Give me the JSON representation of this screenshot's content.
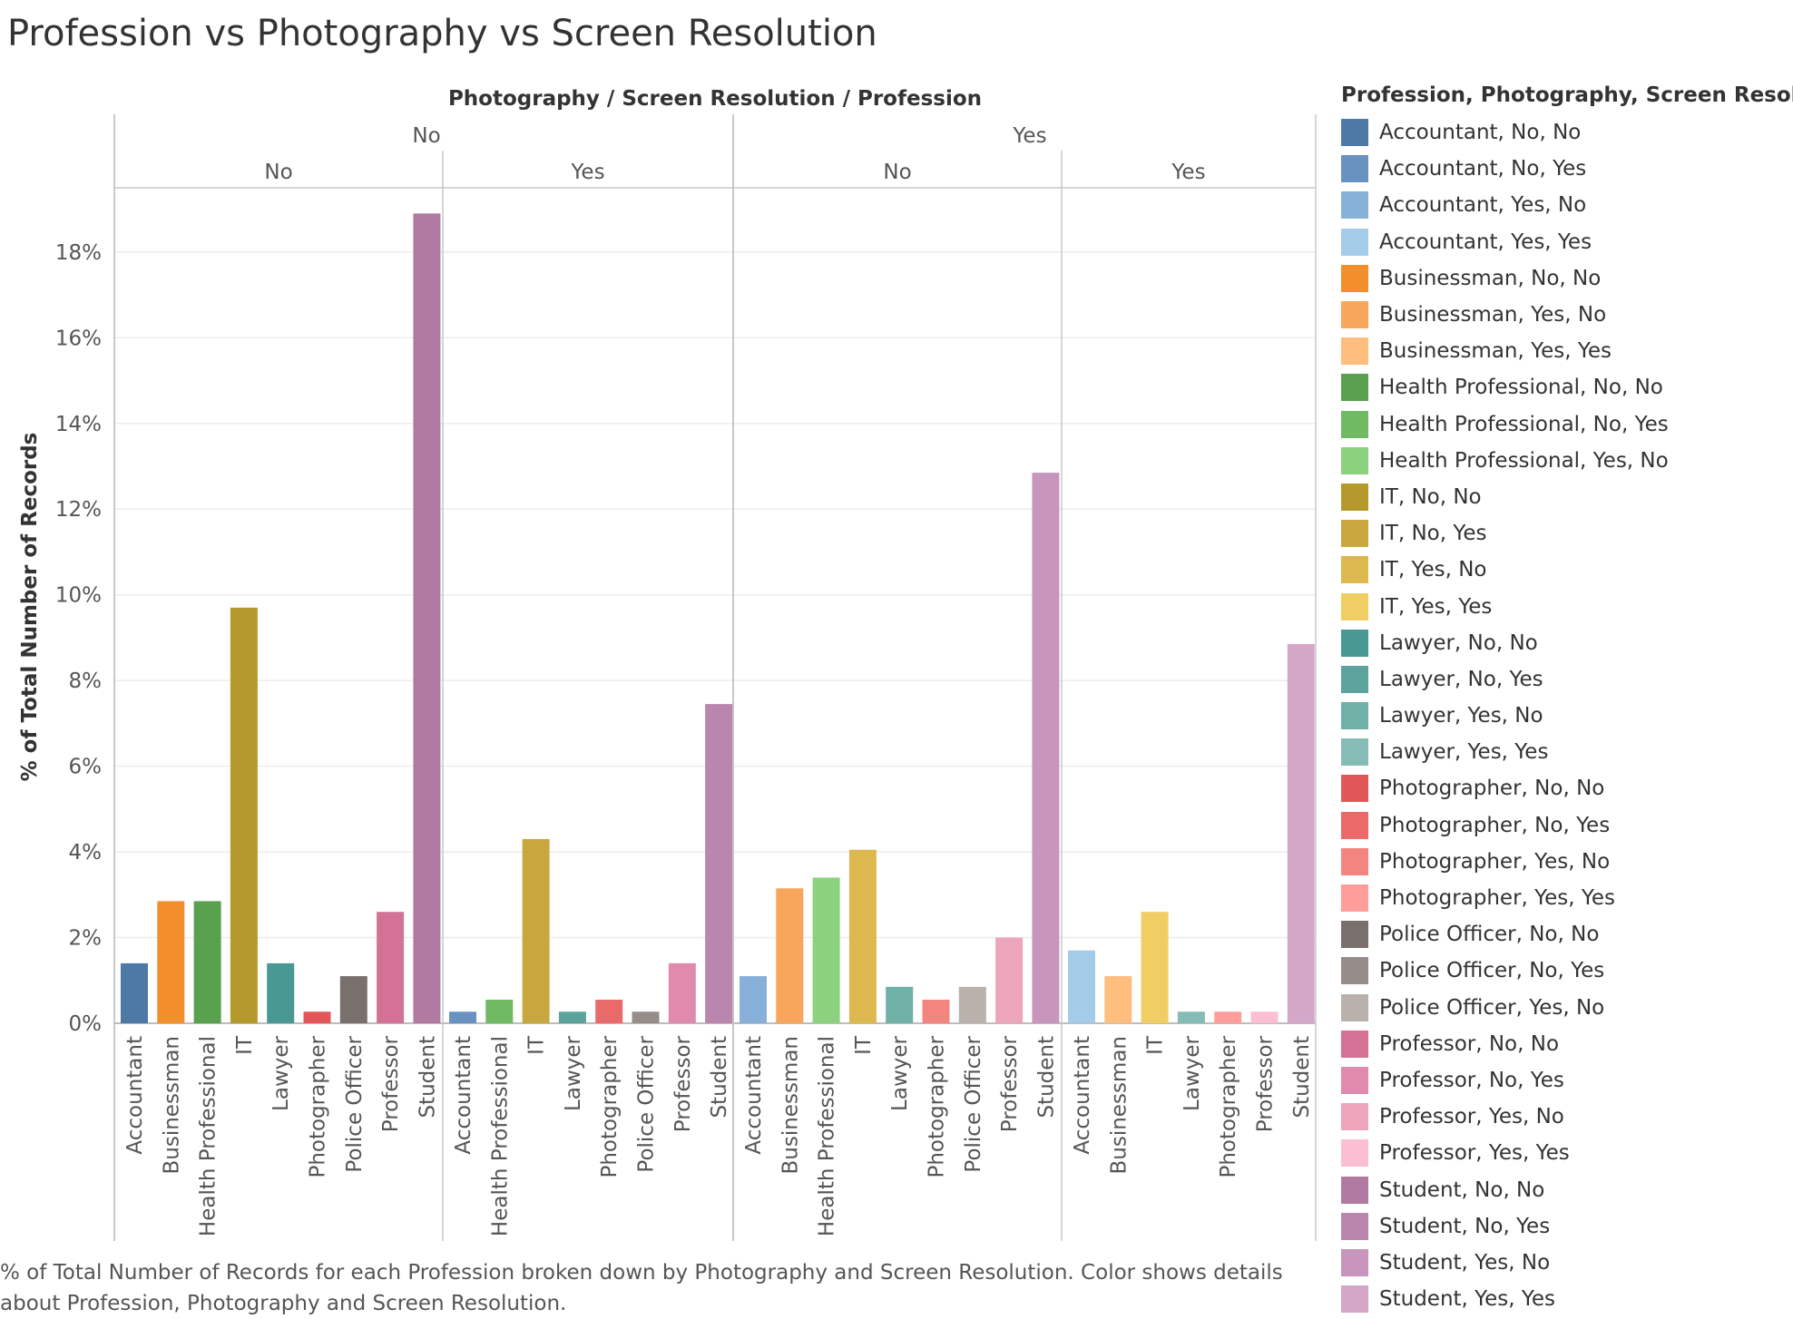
{
  "title": "Profession vs Photography vs Screen Resolution",
  "caption": "% of Total Number of Records for each Profession broken down by Photography and Screen Resolution.  Color shows details about Profession, Photography and Screen Resolution.",
  "legend_title": "Profession, Photography, Screen Resolution",
  "legend": [
    {
      "label": "Accountant, No, No",
      "color": "#4e79a7"
    },
    {
      "label": "Accountant, No, Yes",
      "color": "#6a92c1"
    },
    {
      "label": "Accountant, Yes, No",
      "color": "#86b0d8"
    },
    {
      "label": "Accountant, Yes, Yes",
      "color": "#a4cce9"
    },
    {
      "label": "Businessman, No, No",
      "color": "#f28e2b"
    },
    {
      "label": "Businessman, Yes, No",
      "color": "#f8a65c"
    },
    {
      "label": "Businessman, Yes, Yes",
      "color": "#ffbe7d"
    },
    {
      "label": "Health Professional, No, No",
      "color": "#59a14f"
    },
    {
      "label": "Health Professional, No, Yes",
      "color": "#6fba62"
    },
    {
      "label": "Health Professional, Yes, No",
      "color": "#8cd17d"
    },
    {
      "label": "IT, No, No",
      "color": "#b6992d"
    },
    {
      "label": "IT, No, Yes",
      "color": "#c8a73e"
    },
    {
      "label": "IT, Yes, No",
      "color": "#dcb84f"
    },
    {
      "label": "IT, Yes, Yes",
      "color": "#f1ce63"
    },
    {
      "label": "Lawyer, No, No",
      "color": "#499894"
    },
    {
      "label": "Lawyer, No, Yes",
      "color": "#5ba39c"
    },
    {
      "label": "Lawyer, Yes, No",
      "color": "#6fb0a7"
    },
    {
      "label": "Lawyer, Yes, Yes",
      "color": "#86bcb6"
    },
    {
      "label": "Photographer, No, No",
      "color": "#e15759"
    },
    {
      "label": "Photographer, No, Yes",
      "color": "#ea6a6a"
    },
    {
      "label": "Photographer, Yes, No",
      "color": "#f38580"
    },
    {
      "label": "Photographer, Yes, Yes",
      "color": "#ff9d9a"
    },
    {
      "label": "Police Officer, No, No",
      "color": "#79706e"
    },
    {
      "label": "Police Officer, No, Yes",
      "color": "#968c89"
    },
    {
      "label": "Police Officer, Yes, No",
      "color": "#bab0ac"
    },
    {
      "label": "Professor, No, No",
      "color": "#d37295"
    },
    {
      "label": "Professor, No, Yes",
      "color": "#e08aad"
    },
    {
      "label": "Professor, Yes, No",
      "color": "#eda5bb"
    },
    {
      "label": "Professor, Yes, Yes",
      "color": "#fabfd2"
    },
    {
      "label": "Student, No, No",
      "color": "#b07aa1"
    },
    {
      "label": "Student, No, Yes",
      "color": "#bb86ae"
    },
    {
      "label": "Student, Yes, No",
      "color": "#c895bc"
    },
    {
      "label": "Student, Yes, Yes",
      "color": "#d4a6c8"
    }
  ],
  "chart_data": {
    "type": "bar",
    "title": "Profession vs Photography vs Screen Resolution",
    "header_title": "Photography / Screen Resolution / Profession",
    "ylabel": "% of Total Number of Records",
    "ylim": [
      0,
      19.5
    ],
    "yticks": [
      0,
      2,
      4,
      6,
      8,
      10,
      12,
      14,
      16,
      18
    ],
    "ytick_labels": [
      "0%",
      "2%",
      "4%",
      "6%",
      "8%",
      "10%",
      "12%",
      "14%",
      "16%",
      "18%"
    ],
    "gridlines": true,
    "legend_position": "right",
    "groups": [
      {
        "photography": "No",
        "panels": [
          {
            "screen_resolution": "No",
            "bars": [
              {
                "profession": "Accountant",
                "value": 1.4,
                "color": "#4e79a7"
              },
              {
                "profession": "Businessman",
                "value": 2.85,
                "color": "#f28e2b"
              },
              {
                "profession": "Health Professional",
                "value": 2.85,
                "color": "#59a14f"
              },
              {
                "profession": "IT",
                "value": 9.7,
                "color": "#b6992d"
              },
              {
                "profession": "Lawyer",
                "value": 1.4,
                "color": "#499894"
              },
              {
                "profession": "Photographer",
                "value": 0.27,
                "color": "#e15759"
              },
              {
                "profession": "Police Officer",
                "value": 1.1,
                "color": "#79706e"
              },
              {
                "profession": "Professor",
                "value": 2.6,
                "color": "#d37295"
              },
              {
                "profession": "Student",
                "value": 18.9,
                "color": "#b07aa1"
              }
            ]
          },
          {
            "screen_resolution": "Yes",
            "bars": [
              {
                "profession": "Accountant",
                "value": 0.27,
                "color": "#6a92c1"
              },
              {
                "profession": "Health Professional",
                "value": 0.55,
                "color": "#6fba62"
              },
              {
                "profession": "IT",
                "value": 4.3,
                "color": "#c8a73e"
              },
              {
                "profession": "Lawyer",
                "value": 0.27,
                "color": "#5ba39c"
              },
              {
                "profession": "Photographer",
                "value": 0.55,
                "color": "#ea6a6a"
              },
              {
                "profession": "Police Officer",
                "value": 0.27,
                "color": "#968c89"
              },
              {
                "profession": "Professor",
                "value": 1.4,
                "color": "#e08aad"
              },
              {
                "profession": "Student",
                "value": 7.45,
                "color": "#bb86ae"
              }
            ]
          }
        ]
      },
      {
        "photography": "Yes",
        "panels": [
          {
            "screen_resolution": "No",
            "bars": [
              {
                "profession": "Accountant",
                "value": 1.1,
                "color": "#86b0d8"
              },
              {
                "profession": "Businessman",
                "value": 3.15,
                "color": "#f8a65c"
              },
              {
                "profession": "Health Professional",
                "value": 3.4,
                "color": "#8cd17d"
              },
              {
                "profession": "IT",
                "value": 4.05,
                "color": "#dcb84f"
              },
              {
                "profession": "Lawyer",
                "value": 0.85,
                "color": "#6fb0a7"
              },
              {
                "profession": "Photographer",
                "value": 0.55,
                "color": "#f38580"
              },
              {
                "profession": "Police Officer",
                "value": 0.85,
                "color": "#bab0ac"
              },
              {
                "profession": "Professor",
                "value": 2.0,
                "color": "#eda5bb"
              },
              {
                "profession": "Student",
                "value": 12.85,
                "color": "#c895bc"
              }
            ]
          },
          {
            "screen_resolution": "Yes",
            "bars": [
              {
                "profession": "Accountant",
                "value": 1.7,
                "color": "#a4cce9"
              },
              {
                "profession": "Businessman",
                "value": 1.1,
                "color": "#ffbe7d"
              },
              {
                "profession": "IT",
                "value": 2.6,
                "color": "#f1ce63"
              },
              {
                "profession": "Lawyer",
                "value": 0.27,
                "color": "#86bcb6"
              },
              {
                "profession": "Photographer",
                "value": 0.27,
                "color": "#ff9d9a"
              },
              {
                "profession": "Professor",
                "value": 0.27,
                "color": "#fabfd2"
              },
              {
                "profession": "Student",
                "value": 8.85,
                "color": "#d4a6c8"
              }
            ]
          }
        ]
      }
    ]
  }
}
